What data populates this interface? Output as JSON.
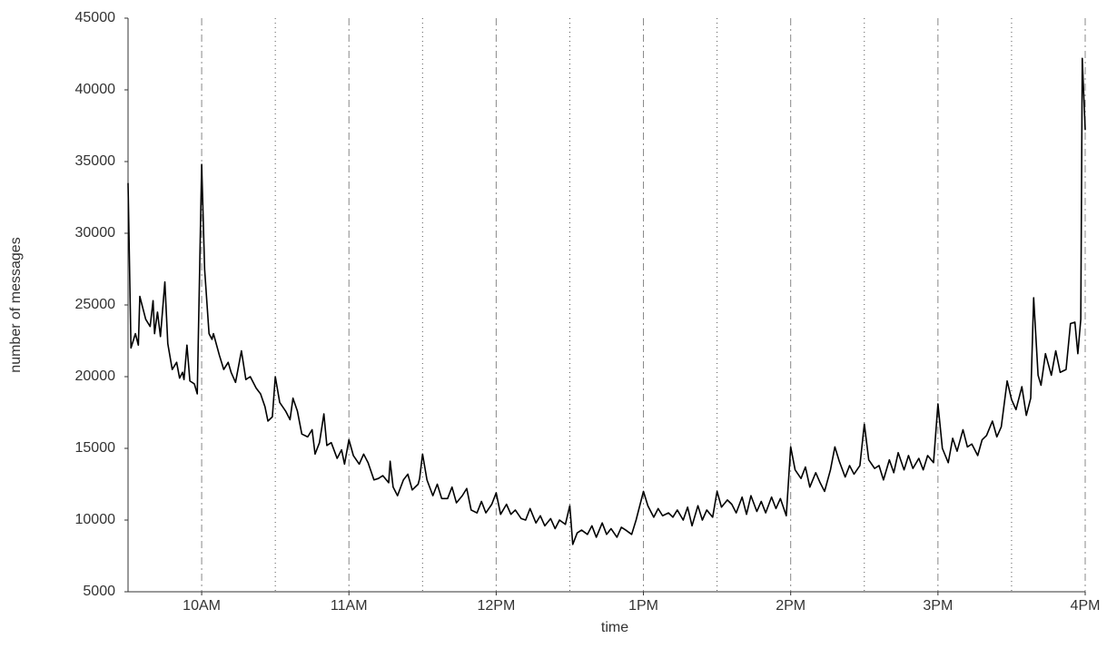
{
  "chart_data": {
    "type": "line",
    "x_label": "time",
    "y_label": "number of messages",
    "xlim": [
      9.5,
      16
    ],
    "ylim": [
      5000,
      45000
    ],
    "yticks": [
      5000,
      10000,
      15000,
      20000,
      25000,
      30000,
      35000,
      40000,
      45000
    ],
    "xticks": [
      {
        "value": 10,
        "label": "10AM"
      },
      {
        "value": 11,
        "label": "11AM"
      },
      {
        "value": 12,
        "label": "12PM"
      },
      {
        "value": 13,
        "label": "1PM"
      },
      {
        "value": 14,
        "label": "2PM"
      },
      {
        "value": 15,
        "label": "3PM"
      },
      {
        "value": 16,
        "label": "4PM"
      }
    ],
    "minor_xticks": [
      10.5,
      11.5,
      12.5,
      13.5,
      14.5,
      15.5
    ],
    "grid": true,
    "color": "#000000",
    "x": [
      9.5,
      9.52,
      9.55,
      9.57,
      9.58,
      9.62,
      9.65,
      9.67,
      9.68,
      9.7,
      9.72,
      9.75,
      9.77,
      9.8,
      9.83,
      9.85,
      9.87,
      9.88,
      9.9,
      9.92,
      9.95,
      9.97,
      10.0,
      10.02,
      10.05,
      10.07,
      10.08,
      10.12,
      10.15,
      10.18,
      10.2,
      10.23,
      10.27,
      10.3,
      10.33,
      10.37,
      10.4,
      10.43,
      10.45,
      10.48,
      10.5,
      10.53,
      10.57,
      10.6,
      10.62,
      10.65,
      10.68,
      10.72,
      10.75,
      10.77,
      10.8,
      10.83,
      10.85,
      10.88,
      10.92,
      10.95,
      10.97,
      11.0,
      11.03,
      11.07,
      11.1,
      11.13,
      11.17,
      11.2,
      11.23,
      11.27,
      11.28,
      11.3,
      11.33,
      11.37,
      11.4,
      11.43,
      11.47,
      11.48,
      11.5,
      11.53,
      11.57,
      11.6,
      11.63,
      11.67,
      11.7,
      11.73,
      11.77,
      11.8,
      11.83,
      11.87,
      11.9,
      11.93,
      11.97,
      12.0,
      12.03,
      12.07,
      12.1,
      12.13,
      12.17,
      12.2,
      12.23,
      12.27,
      12.3,
      12.33,
      12.37,
      12.4,
      12.43,
      12.47,
      12.5,
      12.52,
      12.55,
      12.58,
      12.62,
      12.65,
      12.68,
      12.72,
      12.75,
      12.78,
      12.82,
      12.85,
      12.88,
      12.92,
      12.95,
      13.0,
      13.03,
      13.07,
      13.1,
      13.13,
      13.17,
      13.2,
      13.23,
      13.27,
      13.3,
      13.33,
      13.37,
      13.4,
      13.43,
      13.47,
      13.5,
      13.53,
      13.57,
      13.6,
      13.63,
      13.67,
      13.7,
      13.73,
      13.77,
      13.8,
      13.83,
      13.87,
      13.9,
      13.93,
      13.97,
      14.0,
      14.03,
      14.07,
      14.1,
      14.13,
      14.17,
      14.2,
      14.23,
      14.27,
      14.3,
      14.33,
      14.37,
      14.4,
      14.43,
      14.47,
      14.5,
      14.53,
      14.57,
      14.6,
      14.63,
      14.67,
      14.7,
      14.73,
      14.77,
      14.8,
      14.83,
      14.87,
      14.9,
      14.93,
      14.97,
      15.0,
      15.03,
      15.07,
      15.1,
      15.13,
      15.17,
      15.2,
      15.23,
      15.27,
      15.3,
      15.33,
      15.37,
      15.4,
      15.43,
      15.47,
      15.5,
      15.53,
      15.57,
      15.6,
      15.63,
      15.65,
      15.68,
      15.7,
      15.73,
      15.77,
      15.8,
      15.83,
      15.87,
      15.9,
      15.93,
      15.95,
      15.97,
      15.98,
      16.0
    ],
    "values": [
      33500,
      22000,
      23000,
      22200,
      25600,
      24000,
      23500,
      25300,
      23000,
      24500,
      22800,
      26600,
      22300,
      20500,
      21000,
      19900,
      20300,
      19800,
      22200,
      19700,
      19500,
      18800,
      34800,
      27500,
      23000,
      22600,
      23000,
      21500,
      20500,
      21000,
      20300,
      19600,
      21800,
      19800,
      20000,
      19200,
      18800,
      17900,
      16900,
      17200,
      20000,
      18200,
      17600,
      17000,
      18500,
      17600,
      16000,
      15800,
      16300,
      14600,
      15400,
      17400,
      15200,
      15400,
      14300,
      14900,
      13900,
      15600,
      14500,
      13900,
      14600,
      14000,
      12800,
      12900,
      13100,
      12600,
      14100,
      12300,
      11700,
      12800,
      13200,
      12100,
      12500,
      12900,
      14600,
      12800,
      11700,
      12500,
      11500,
      11500,
      12300,
      11200,
      11700,
      12200,
      10700,
      10500,
      11300,
      10500,
      11100,
      11900,
      10400,
      11100,
      10400,
      10700,
      10100,
      10000,
      10800,
      9800,
      10300,
      9600,
      10100,
      9400,
      10000,
      9700,
      11000,
      8300,
      9100,
      9300,
      9000,
      9600,
      8800,
      9800,
      9000,
      9400,
      8800,
      9500,
      9300,
      9000,
      10000,
      12000,
      11000,
      10200,
      10800,
      10300,
      10500,
      10200,
      10700,
      10000,
      10900,
      9600,
      11000,
      10000,
      10700,
      10200,
      12000,
      10900,
      11400,
      11100,
      10500,
      11600,
      10400,
      11700,
      10600,
      11300,
      10500,
      11600,
      10800,
      11500,
      10300,
      15100,
      13500,
      12900,
      13700,
      12300,
      13300,
      12600,
      12000,
      13500,
      15100,
      14100,
      13000,
      13800,
      13200,
      13800,
      16700,
      14200,
      13600,
      13800,
      12800,
      14200,
      13300,
      14700,
      13500,
      14500,
      13600,
      14300,
      13500,
      14500,
      14000,
      18100,
      15000,
      14000,
      15700,
      14800,
      16300,
      15100,
      15300,
      14500,
      15600,
      15900,
      16900,
      15800,
      16500,
      19700,
      18400,
      17700,
      19300,
      17300,
      18500,
      25500,
      20100,
      19400,
      21600,
      20100,
      21800,
      20300,
      20500,
      23700,
      23800,
      21600,
      24000,
      42200,
      37200
    ]
  }
}
